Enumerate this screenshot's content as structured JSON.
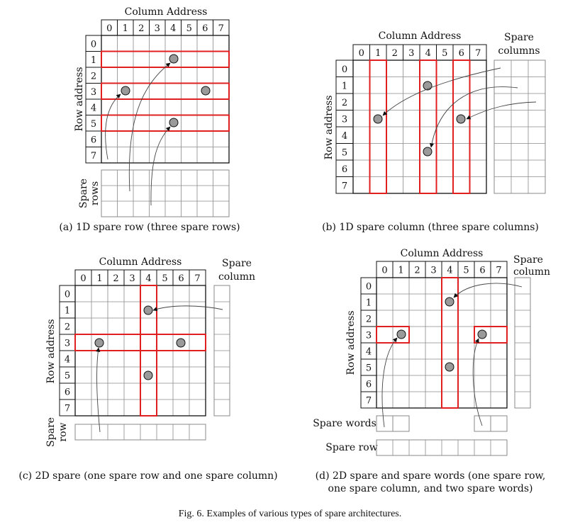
{
  "panel_a": {
    "column_title": "Column Address",
    "row_title": "Row address",
    "spare_label_1": "Spare",
    "spare_label_2": "rows",
    "caption": "(a) 1D spare row (three spare rows)",
    "column_numbers": [
      "0",
      "1",
      "2",
      "3",
      "4",
      "5",
      "6",
      "7"
    ],
    "row_numbers": [
      "0",
      "1",
      "2",
      "3",
      "4",
      "5",
      "6",
      "7"
    ]
  },
  "panel_b": {
    "column_title": "Column Address",
    "spare_title_1": "Spare",
    "spare_title_2": "columns",
    "row_title": "Row address",
    "caption": "(b) 1D spare column (three spare columns)",
    "column_numbers": [
      "0",
      "1",
      "2",
      "3",
      "4",
      "5",
      "6",
      "7"
    ],
    "row_numbers": [
      "0",
      "1",
      "2",
      "3",
      "4",
      "5",
      "6",
      "7"
    ]
  },
  "panel_c": {
    "column_title": "Column Address",
    "spare_title_1": "Spare",
    "spare_title_2": "column",
    "row_title": "Row address",
    "spare_label_1": "Spare",
    "spare_label_2": "row",
    "caption": "(c) 2D spare (one spare row and one spare column)",
    "column_numbers": [
      "0",
      "1",
      "2",
      "3",
      "4",
      "5",
      "6",
      "7"
    ],
    "row_numbers": [
      "0",
      "1",
      "2",
      "3",
      "4",
      "5",
      "6",
      "7"
    ]
  },
  "panel_d": {
    "column_title": "Column Address",
    "spare_title_1": "Spare",
    "spare_title_2": "column",
    "row_title": "Row address",
    "spare_words_label": "Spare words",
    "spare_row_label": "Spare row",
    "caption_1": "(d) 2D spare and spare words (one spare row,",
    "caption_2": "one spare column, and two spare words)",
    "column_numbers": [
      "0",
      "1",
      "2",
      "3",
      "4",
      "5",
      "6",
      "7"
    ],
    "row_numbers": [
      "0",
      "1",
      "2",
      "3",
      "4",
      "5",
      "6",
      "7"
    ]
  },
  "figure_caption": "Fig. 6.   Examples of various types of spare architectures.",
  "colors": {
    "repair": "#e02020",
    "grid": "#8a8a8a",
    "fault": "#9a9a9a"
  }
}
